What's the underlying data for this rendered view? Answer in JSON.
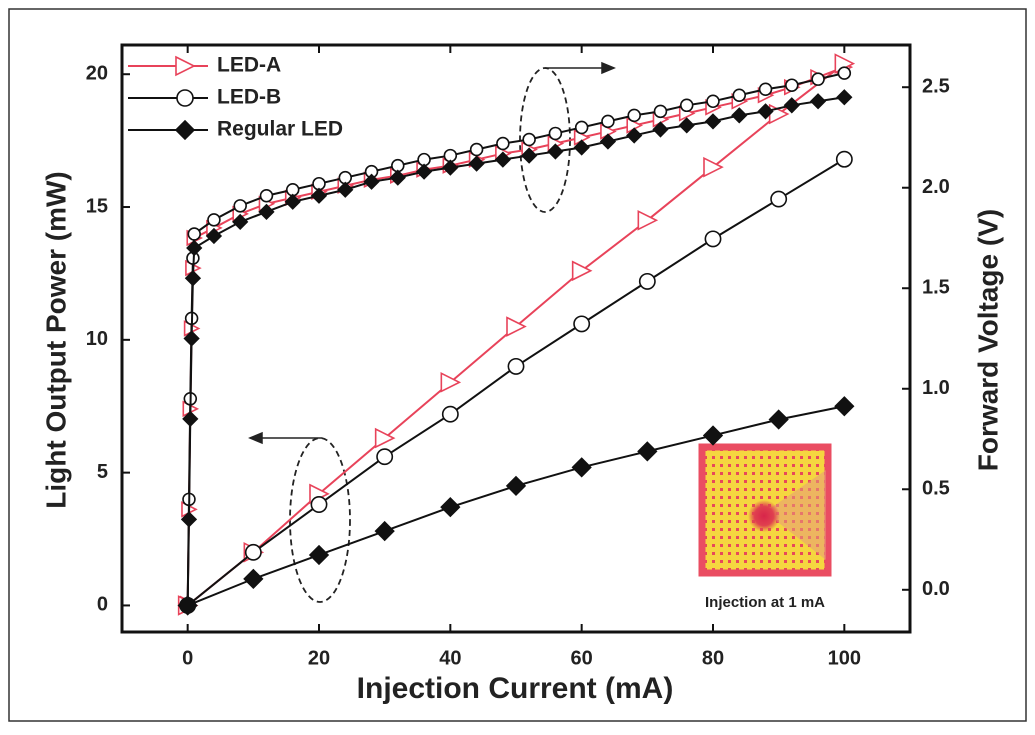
{
  "chart_data": {
    "type": "line",
    "xlabel": "Injection Current (mA)",
    "ylabel": "Light Output Power (mW)",
    "y2label": "Forward Voltage (V)",
    "x": [
      0,
      10,
      20,
      30,
      40,
      50,
      60,
      70,
      80,
      90,
      100
    ],
    "voltage_x": [
      0,
      0.2,
      0.4,
      0.6,
      0.8,
      1,
      4,
      8,
      12,
      16,
      20,
      24,
      28,
      32,
      36,
      40,
      44,
      48,
      52,
      56,
      60,
      64,
      68,
      72,
      76,
      80,
      84,
      88,
      92,
      96,
      100
    ],
    "xlim": [
      -10,
      110
    ],
    "xticks": [
      0,
      20,
      40,
      60,
      80,
      100
    ],
    "ylim": [
      -1,
      21.1
    ],
    "yticks": [
      0,
      5,
      10,
      15,
      20
    ],
    "y2lim": [
      -0.21,
      2.71
    ],
    "y2ticks": [
      {
        "value": 0,
        "label": "0.0"
      },
      {
        "value": 0.5,
        "label": "0.5"
      },
      {
        "value": 1,
        "label": "1.0"
      },
      {
        "value": 1.5,
        "label": "1.5"
      },
      {
        "value": 2,
        "label": "2.0"
      },
      {
        "value": 2.5,
        "label": "2.5"
      }
    ],
    "series": [
      {
        "name": "LED-A",
        "color": "#e8435a",
        "marker": "triangle",
        "values": [
          0,
          2.0,
          4.2,
          6.3,
          8.4,
          10.5,
          12.6,
          14.5,
          16.5,
          18.5,
          20.4
        ],
        "voltage_values": [
          -0.07,
          0.4,
          0.9,
          1.3,
          1.6,
          1.75,
          1.8,
          1.87,
          1.92,
          1.95,
          1.98,
          2.01,
          2.04,
          2.06,
          2.09,
          2.11,
          2.14,
          2.17,
          2.19,
          2.22,
          2.25,
          2.28,
          2.31,
          2.34,
          2.37,
          2.4,
          2.43,
          2.46,
          2.5,
          2.55,
          2.6
        ]
      },
      {
        "name": "LED-B",
        "color": "#111111",
        "marker": "circle",
        "values": [
          0,
          2.0,
          3.8,
          5.6,
          7.2,
          9.0,
          10.6,
          12.2,
          13.8,
          15.3,
          16.8
        ],
        "voltage_values": [
          -0.07,
          0.45,
          0.95,
          1.35,
          1.65,
          1.77,
          1.84,
          1.91,
          1.96,
          1.99,
          2.02,
          2.05,
          2.08,
          2.11,
          2.14,
          2.16,
          2.19,
          2.22,
          2.24,
          2.27,
          2.3,
          2.33,
          2.36,
          2.38,
          2.41,
          2.43,
          2.46,
          2.49,
          2.51,
          2.54,
          2.57
        ]
      },
      {
        "name": "Regular LED",
        "color": "#111111",
        "marker": "diamond",
        "values": [
          0,
          1.0,
          1.9,
          2.8,
          3.7,
          4.5,
          5.2,
          5.8,
          6.4,
          7.0,
          7.5
        ],
        "voltage_values": [
          -0.07,
          0.35,
          0.85,
          1.25,
          1.55,
          1.7,
          1.76,
          1.83,
          1.88,
          1.93,
          1.96,
          1.99,
          2.03,
          2.05,
          2.08,
          2.1,
          2.12,
          2.14,
          2.16,
          2.18,
          2.2,
          2.23,
          2.26,
          2.29,
          2.31,
          2.33,
          2.36,
          2.38,
          2.41,
          2.43,
          2.45
        ]
      }
    ],
    "inset_label": "Injection at 1 mA"
  }
}
